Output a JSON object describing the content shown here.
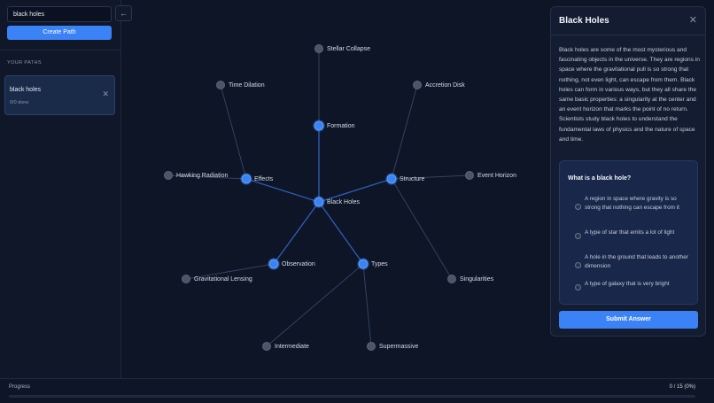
{
  "sidebar": {
    "search_value": "black holes",
    "create_button": "Create Path",
    "section_label": "YOUR PATHS",
    "paths": [
      {
        "title": "black holes",
        "status": "0/0 done"
      }
    ]
  },
  "graph": {
    "nodes": [
      "Black Holes",
      "Formation",
      "Effects",
      "Structure",
      "Observation",
      "Types",
      "Stellar Collapse",
      "Time Dilation",
      "Hawking Radiation",
      "Accretion Disk",
      "Event Horizon",
      "Singularities",
      "Gravitational Lensing",
      "Intermediate",
      "Supermassive"
    ]
  },
  "panel": {
    "title": "Black Holes",
    "description": "Black holes are some of the most mysterious and fascinating objects in the universe. They are regions in space where the gravitational pull is so strong that nothing, not even light, can escape from them. Black holes can form in various ways, but they all share the same basic properties: a singularity at the center and an event horizon that marks the point of no return. Scientists study black holes to understand the fundamental laws of physics and the nature of space and time.",
    "quiz": {
      "question": "What is a black hole?",
      "options": [
        "A region in space where gravity is so strong that nothing can escape from it",
        "A type of star that emits a lot of light",
        "A hole in the ground that leads to another dimension",
        "A type of galaxy that is very bright"
      ],
      "submit": "Submit Answer"
    }
  },
  "progress": {
    "label": "Progress",
    "value": "0 / 15 (0%)"
  }
}
